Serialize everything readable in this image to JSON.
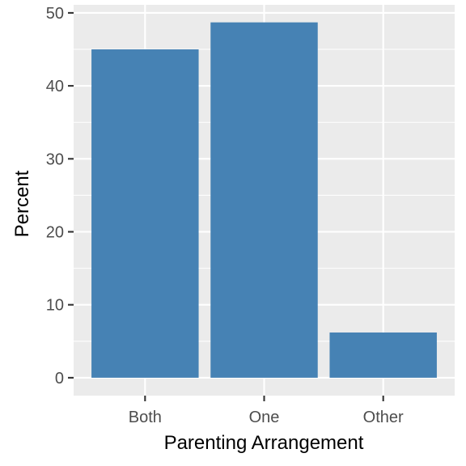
{
  "chart_data": {
    "type": "bar",
    "categories": [
      "Both",
      "One",
      "Other"
    ],
    "values": [
      45.0,
      48.7,
      6.2
    ],
    "xlabel": "Parenting Arrangement",
    "ylabel": "Percent",
    "ylim": [
      -2.45,
      51.1
    ],
    "yticks": [
      0,
      10,
      20,
      30,
      40,
      50
    ],
    "ytick_labels": [
      "0",
      "10",
      "20",
      "30",
      "40",
      "50"
    ],
    "grid": true,
    "legend": "none",
    "bar_color": "#4682b4",
    "panel_background": "#ebebeb",
    "grid_color": "#ffffff"
  }
}
